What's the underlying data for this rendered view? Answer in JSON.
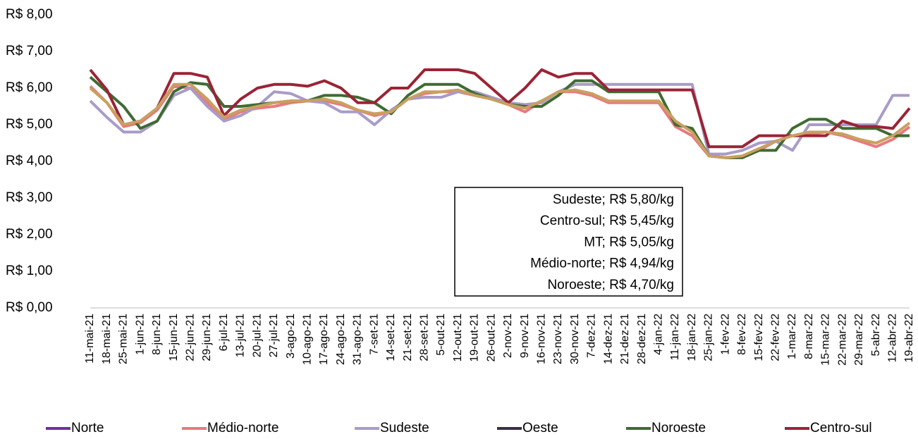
{
  "chart_data": {
    "type": "line",
    "categories": [
      "11-mai-21",
      "18-mai-21",
      "25-mai-21",
      "1-jun-21",
      "8-jun-21",
      "15-jun-21",
      "22-jun-21",
      "29-jun-21",
      "6-jul-21",
      "13-jul-21",
      "20-jul-21",
      "27-jul-21",
      "3-ago-21",
      "10-ago-21",
      "17-ago-21",
      "24-ago-21",
      "31-ago-21",
      "7-set-21",
      "14-set-21",
      "21-set-21",
      "28-set-21",
      "5-out-21",
      "12-out-21",
      "19-out-21",
      "26-out-21",
      "2-nov-21",
      "9-nov-21",
      "16-nov-21",
      "23-nov-21",
      "30-nov-21",
      "7-dez-21",
      "14-dez-21",
      "21-dez-21",
      "28-dez-21",
      "4-jan-22",
      "11-jan-22",
      "18-jan-22",
      "25-jan-22",
      "1-fev-22",
      "8-fev-22",
      "15-fev-22",
      "22-fev-22",
      "1-mar-22",
      "8-mar-22",
      "15-mar-22",
      "22-mar-22",
      "29-mar-22",
      "5-abr-22",
      "12-abr-22",
      "19-abr-22"
    ],
    "series": [
      {
        "name": "Norte",
        "color": "#7030a0",
        "values": [
          null,
          null,
          null,
          null,
          null,
          null,
          null,
          null,
          null,
          null,
          null,
          null,
          null,
          null,
          null,
          null,
          null,
          null,
          null,
          null,
          null,
          null,
          null,
          null,
          null,
          null,
          null,
          null,
          null,
          null,
          null,
          null,
          null,
          null,
          null,
          null,
          null,
          null,
          null,
          null,
          null,
          null,
          null,
          null,
          null,
          null,
          null,
          null,
          null,
          null
        ]
      },
      {
        "name": "Médio-norte",
        "color": "#e87a7f",
        "values": [
          6.05,
          5.6,
          4.95,
          5.05,
          5.4,
          6.05,
          6.0,
          5.6,
          5.15,
          5.35,
          5.45,
          5.5,
          5.6,
          5.65,
          5.65,
          5.55,
          5.4,
          5.25,
          5.35,
          5.7,
          5.85,
          5.9,
          5.9,
          5.8,
          5.7,
          5.55,
          5.35,
          5.65,
          5.9,
          5.9,
          5.8,
          5.6,
          5.6,
          5.6,
          5.6,
          4.95,
          4.7,
          4.15,
          4.1,
          4.1,
          4.3,
          4.55,
          4.7,
          4.75,
          4.8,
          4.7,
          4.55,
          4.4,
          4.6,
          4.94
        ]
      },
      {
        "name": "Sudeste",
        "color": "#a99bc9",
        "values": [
          5.65,
          5.2,
          4.8,
          4.8,
          5.1,
          5.8,
          6.0,
          5.5,
          5.1,
          5.25,
          5.5,
          5.9,
          5.85,
          5.65,
          5.6,
          5.35,
          5.35,
          5.0,
          5.4,
          5.7,
          5.75,
          5.75,
          5.9,
          5.9,
          5.75,
          5.6,
          5.55,
          5.6,
          5.9,
          6.1,
          6.1,
          6.1,
          6.1,
          6.1,
          6.1,
          6.1,
          6.1,
          4.2,
          4.2,
          4.3,
          4.5,
          4.55,
          4.3,
          5.0,
          5.0,
          5.0,
          5.0,
          5.0,
          5.8,
          5.8
        ]
      },
      {
        "name": "Oeste",
        "color": "#3b2d4a",
        "values": [
          null,
          null,
          null,
          null,
          null,
          null,
          null,
          null,
          null,
          null,
          null,
          null,
          null,
          null,
          null,
          null,
          null,
          null,
          null,
          null,
          null,
          null,
          null,
          null,
          null,
          null,
          null,
          null,
          null,
          null,
          null,
          null,
          null,
          null,
          null,
          null,
          null,
          null,
          null,
          null,
          null,
          null,
          null,
          null,
          null,
          null,
          null,
          null,
          null,
          null
        ]
      },
      {
        "name": "Noroeste",
        "color": "#3f6b32",
        "values": [
          6.3,
          5.9,
          5.5,
          4.9,
          5.1,
          5.9,
          6.15,
          6.1,
          5.5,
          5.5,
          5.55,
          5.6,
          5.65,
          5.65,
          5.8,
          5.8,
          5.75,
          5.6,
          5.3,
          5.8,
          6.1,
          6.1,
          6.1,
          5.85,
          5.7,
          5.55,
          5.5,
          5.5,
          5.8,
          6.2,
          6.2,
          5.9,
          5.9,
          5.9,
          5.9,
          5.0,
          4.9,
          4.15,
          4.1,
          4.1,
          4.3,
          4.3,
          4.9,
          5.15,
          5.15,
          4.9,
          4.9,
          4.9,
          4.7,
          4.7
        ]
      },
      {
        "name": "Centro-sul",
        "color": "#9b2335",
        "values": [
          6.5,
          5.95,
          5.0,
          5.1,
          5.45,
          6.4,
          6.4,
          6.3,
          5.25,
          5.7,
          6.0,
          6.1,
          6.1,
          6.05,
          6.2,
          6.0,
          5.6,
          5.6,
          6.0,
          6.0,
          6.5,
          6.5,
          6.5,
          6.4,
          6.0,
          5.6,
          6.0,
          6.5,
          6.3,
          6.4,
          6.4,
          5.95,
          5.95,
          5.95,
          5.95,
          5.95,
          5.95,
          4.4,
          4.4,
          4.4,
          4.7,
          4.7,
          4.7,
          4.7,
          4.7,
          5.1,
          4.95,
          4.95,
          4.9,
          5.45
        ]
      },
      {
        "name": "MT",
        "color": "#c9a060",
        "legend": false,
        "values": [
          6.0,
          5.6,
          5.0,
          5.1,
          5.45,
          6.1,
          6.1,
          5.7,
          5.2,
          5.4,
          5.5,
          5.6,
          5.65,
          5.65,
          5.7,
          5.6,
          5.4,
          5.3,
          5.35,
          5.7,
          5.9,
          5.9,
          5.95,
          5.8,
          5.7,
          5.55,
          5.45,
          5.65,
          5.9,
          5.95,
          5.85,
          5.65,
          5.65,
          5.65,
          5.65,
          5.1,
          4.8,
          4.15,
          4.1,
          4.15,
          4.35,
          4.55,
          4.7,
          4.8,
          4.8,
          4.75,
          4.6,
          4.5,
          4.7,
          5.05
        ]
      }
    ],
    "ylim": [
      0,
      8
    ],
    "yticks": [
      {
        "value": 0,
        "label": "R$ 0,00"
      },
      {
        "value": 1,
        "label": "R$ 1,00"
      },
      {
        "value": 2,
        "label": "R$ 2,00"
      },
      {
        "value": 3,
        "label": "R$ 3,00"
      },
      {
        "value": 4,
        "label": "R$ 4,00"
      },
      {
        "value": 5,
        "label": "R$ 5,00"
      },
      {
        "value": 6,
        "label": "R$ 6,00"
      },
      {
        "value": 7,
        "label": "R$ 7,00"
      },
      {
        "value": 8,
        "label": "R$ 8,00"
      }
    ],
    "grid": false,
    "legend_position": "bottom",
    "annotation": [
      "Sudeste; R$ 5,80/kg",
      "Centro-sul; R$ 5,45/kg",
      "MT; R$ 5,05/kg",
      "Médio-norte; R$ 4,94/kg",
      "Noroeste; R$ 4,70/kg"
    ]
  }
}
